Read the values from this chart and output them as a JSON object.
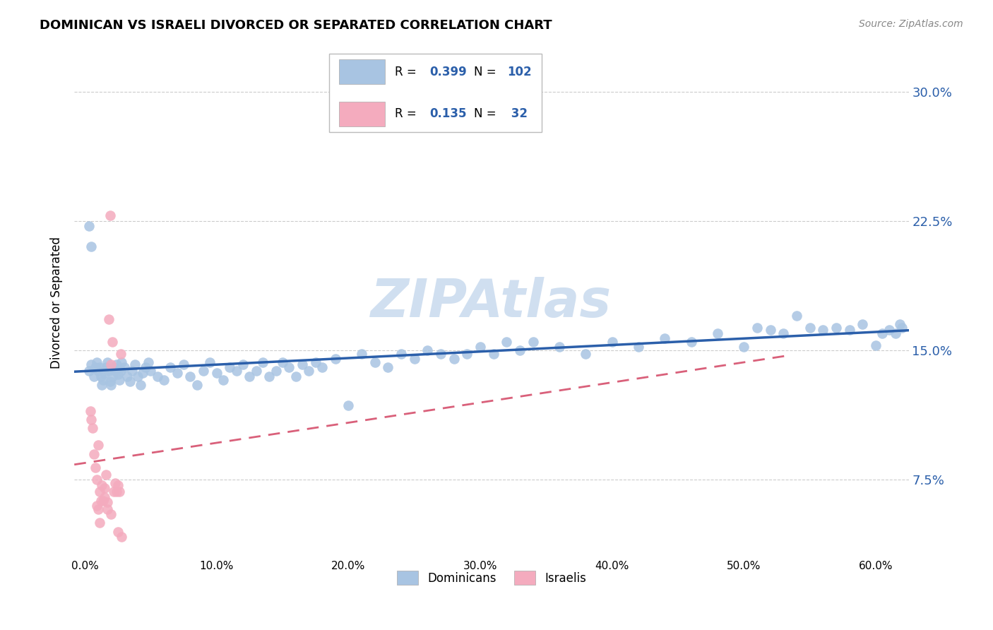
{
  "title": "DOMINICAN VS ISRAELI DIVORCED OR SEPARATED CORRELATION CHART",
  "source": "Source: ZipAtlas.com",
  "ylabel": "Divorced or Separated",
  "ytick_labels": [
    "7.5%",
    "15.0%",
    "22.5%",
    "30.0%"
  ],
  "ytick_vals": [
    0.075,
    0.15,
    0.225,
    0.3
  ],
  "xlim": [
    -0.008,
    0.625
  ],
  "ylim": [
    0.03,
    0.325
  ],
  "dominicans_R": 0.399,
  "dominicans_N": 102,
  "israelis_R": 0.135,
  "israelis_N": 32,
  "blue_scatter_color": "#a8c4e2",
  "blue_line_color": "#2b5faa",
  "pink_scatter_color": "#f4abbe",
  "pink_line_color": "#d9607a",
  "grid_color": "#cccccc",
  "watermark_color": "#d0dff0",
  "dominicans_x": [
    0.003,
    0.005,
    0.007,
    0.008,
    0.009,
    0.01,
    0.011,
    0.012,
    0.013,
    0.014,
    0.015,
    0.016,
    0.017,
    0.018,
    0.019,
    0.02,
    0.021,
    0.022,
    0.023,
    0.024,
    0.025,
    0.026,
    0.027,
    0.028,
    0.03,
    0.032,
    0.034,
    0.036,
    0.038,
    0.04,
    0.042,
    0.044,
    0.046,
    0.048,
    0.05,
    0.055,
    0.06,
    0.065,
    0.07,
    0.075,
    0.08,
    0.085,
    0.09,
    0.095,
    0.1,
    0.105,
    0.11,
    0.115,
    0.12,
    0.125,
    0.13,
    0.135,
    0.14,
    0.145,
    0.15,
    0.155,
    0.16,
    0.165,
    0.17,
    0.175,
    0.18,
    0.19,
    0.2,
    0.21,
    0.22,
    0.23,
    0.24,
    0.25,
    0.26,
    0.27,
    0.28,
    0.29,
    0.3,
    0.31,
    0.32,
    0.33,
    0.34,
    0.36,
    0.38,
    0.4,
    0.42,
    0.44,
    0.46,
    0.48,
    0.5,
    0.51,
    0.52,
    0.53,
    0.54,
    0.55,
    0.56,
    0.57,
    0.58,
    0.59,
    0.6,
    0.605,
    0.61,
    0.615,
    0.618,
    0.62,
    0.003,
    0.005
  ],
  "dominicans_y": [
    0.138,
    0.142,
    0.135,
    0.14,
    0.143,
    0.138,
    0.14,
    0.135,
    0.13,
    0.133,
    0.137,
    0.14,
    0.143,
    0.138,
    0.132,
    0.13,
    0.135,
    0.14,
    0.138,
    0.142,
    0.136,
    0.133,
    0.138,
    0.143,
    0.14,
    0.135,
    0.132,
    0.138,
    0.142,
    0.135,
    0.13,
    0.137,
    0.14,
    0.143,
    0.138,
    0.135,
    0.133,
    0.14,
    0.137,
    0.142,
    0.135,
    0.13,
    0.138,
    0.143,
    0.137,
    0.133,
    0.14,
    0.138,
    0.142,
    0.135,
    0.138,
    0.143,
    0.135,
    0.138,
    0.143,
    0.14,
    0.135,
    0.142,
    0.138,
    0.143,
    0.14,
    0.145,
    0.118,
    0.148,
    0.143,
    0.14,
    0.148,
    0.145,
    0.15,
    0.148,
    0.145,
    0.148,
    0.152,
    0.148,
    0.155,
    0.15,
    0.155,
    0.152,
    0.148,
    0.155,
    0.152,
    0.157,
    0.155,
    0.16,
    0.152,
    0.163,
    0.162,
    0.16,
    0.17,
    0.163,
    0.162,
    0.163,
    0.162,
    0.165,
    0.153,
    0.16,
    0.162,
    0.16,
    0.165,
    0.163,
    0.222,
    0.21
  ],
  "israelis_x": [
    0.004,
    0.005,
    0.006,
    0.007,
    0.008,
    0.009,
    0.01,
    0.011,
    0.012,
    0.013,
    0.014,
    0.015,
    0.016,
    0.017,
    0.018,
    0.019,
    0.02,
    0.021,
    0.022,
    0.023,
    0.024,
    0.025,
    0.026,
    0.027,
    0.028,
    0.009,
    0.01,
    0.011,
    0.015,
    0.017,
    0.02,
    0.025
  ],
  "israelis_y": [
    0.115,
    0.11,
    0.105,
    0.09,
    0.082,
    0.075,
    0.095,
    0.068,
    0.063,
    0.072,
    0.063,
    0.07,
    0.078,
    0.062,
    0.168,
    0.228,
    0.142,
    0.155,
    0.068,
    0.073,
    0.068,
    0.072,
    0.068,
    0.148,
    0.042,
    0.06,
    0.058,
    0.05,
    0.065,
    0.058,
    0.055,
    0.045
  ]
}
